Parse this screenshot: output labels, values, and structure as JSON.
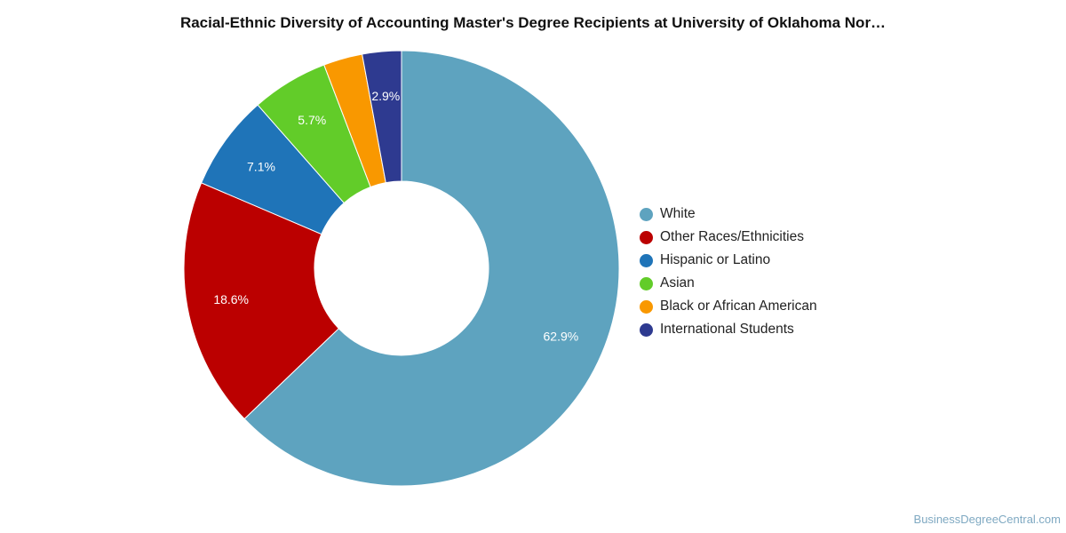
{
  "chart_data": {
    "type": "pie",
    "donut": true,
    "title": "Racial-Ethnic Diversity of Accounting Master's Degree Recipients at University of Oklahoma Nor…",
    "legend_position": "right",
    "slices": [
      {
        "name": "White",
        "value": 62.9,
        "label": "62.9%",
        "color": "#5ea3bf"
      },
      {
        "name": "Other Races/Ethnicities",
        "value": 18.6,
        "label": "18.6%",
        "color": "#bb0000"
      },
      {
        "name": "Hispanic or Latino",
        "value": 7.1,
        "label": "7.1%",
        "color": "#1f74b8"
      },
      {
        "name": "Asian",
        "value": 5.7,
        "label": "5.7%",
        "color": "#62cc29"
      },
      {
        "name": "Black or African American",
        "value": 2.9,
        "label": "",
        "color": "#f99800"
      },
      {
        "name": "International Students",
        "value": 2.9,
        "label": "2.9%",
        "color": "#2e3a90"
      }
    ]
  },
  "credit": "BusinessDegreeCentral.com"
}
